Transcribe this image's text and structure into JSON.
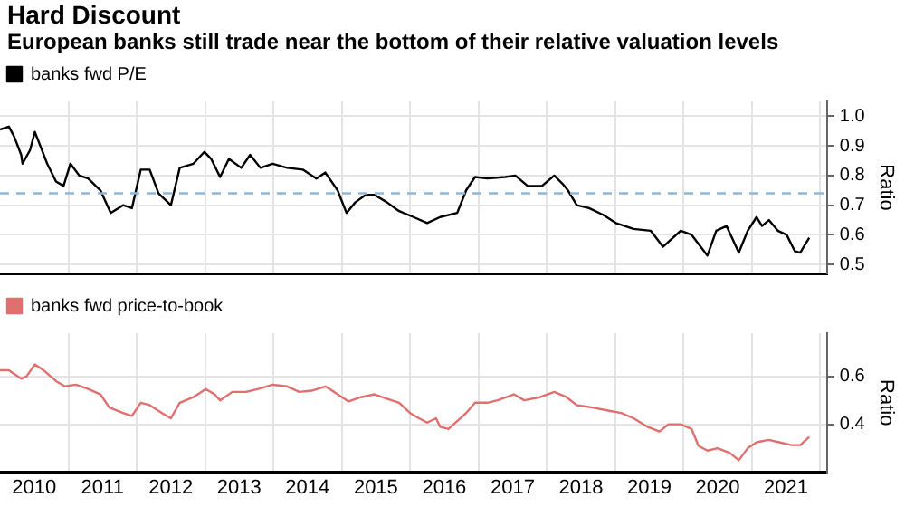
{
  "chart_data": [
    {
      "type": "line",
      "title": "Hard Discount",
      "subtitle": "European banks still trade near the bottom of their relative valuation levels",
      "ylabel": "Ratio",
      "x": [
        2010.0,
        2010.13,
        2010.21,
        2010.31,
        2010.33,
        2010.44,
        2010.51,
        2010.59,
        2010.69,
        2010.82,
        2010.93,
        2011.03,
        2011.16,
        2011.29,
        2011.47,
        2011.62,
        2011.8,
        2011.93,
        2012.06,
        2012.19,
        2012.32,
        2012.5,
        2012.63,
        2012.83,
        2012.99,
        2013.09,
        2013.22,
        2013.35,
        2013.53,
        2013.66,
        2013.81,
        2013.99,
        2014.2,
        2014.43,
        2014.63,
        2014.76,
        2014.94,
        2015.07,
        2015.2,
        2015.35,
        2015.48,
        2015.66,
        2015.84,
        2016.05,
        2016.25,
        2016.44,
        2016.69,
        2016.82,
        2016.95,
        2017.13,
        2017.39,
        2017.54,
        2017.72,
        2017.93,
        2018.11,
        2018.24,
        2018.31,
        2018.44,
        2018.62,
        2018.83,
        2019.01,
        2019.27,
        2019.52,
        2019.7,
        2019.96,
        2020.12,
        2020.35,
        2020.48,
        2020.63,
        2020.81,
        2020.94,
        2021.07,
        2021.15,
        2021.25,
        2021.38,
        2021.51,
        2021.63,
        2021.71,
        2021.76,
        2021.84
      ],
      "series": [
        {
          "name": "banks fwd P/E",
          "color": "#000000",
          "values": [
            0.955,
            0.965,
            0.93,
            0.87,
            0.84,
            0.886,
            0.947,
            0.9,
            0.84,
            0.78,
            0.765,
            0.84,
            0.8,
            0.79,
            0.75,
            0.674,
            0.7,
            0.69,
            0.82,
            0.82,
            0.74,
            0.7,
            0.826,
            0.84,
            0.88,
            0.856,
            0.795,
            0.856,
            0.826,
            0.87,
            0.826,
            0.84,
            0.826,
            0.82,
            0.79,
            0.81,
            0.75,
            0.674,
            0.71,
            0.735,
            0.735,
            0.71,
            0.68,
            0.66,
            0.64,
            0.66,
            0.674,
            0.75,
            0.795,
            0.79,
            0.795,
            0.8,
            0.765,
            0.765,
            0.8,
            0.77,
            0.75,
            0.7,
            0.69,
            0.667,
            0.64,
            0.62,
            0.614,
            0.56,
            0.614,
            0.6,
            0.53,
            0.614,
            0.63,
            0.54,
            0.614,
            0.66,
            0.63,
            0.65,
            0.614,
            0.6,
            0.545,
            0.54,
            0.56,
            0.59
          ]
        }
      ],
      "xlim": [
        2010,
        2022.1
      ],
      "xticks": [
        {
          "value": 2011,
          "label": null
        },
        {
          "value": 2012,
          "label": null
        },
        {
          "value": 2013,
          "label": null
        },
        {
          "value": 2014,
          "label": null
        },
        {
          "value": 2015,
          "label": null
        },
        {
          "value": 2016,
          "label": null
        },
        {
          "value": 2017,
          "label": null
        },
        {
          "value": 2018,
          "label": null
        },
        {
          "value": 2019,
          "label": null
        },
        {
          "value": 2020,
          "label": null
        },
        {
          "value": 2021,
          "label": null
        },
        {
          "value": 2022,
          "label": null
        }
      ],
      "ylim": [
        0.47,
        1.05
      ],
      "yticks": [
        0.5,
        0.6,
        0.7,
        0.8,
        0.9,
        {
          "value": 1,
          "label": "1.0"
        }
      ],
      "ref_lines": [
        {
          "axis": "y",
          "value": 0.74,
          "color": "#8fb8d8",
          "line_style": "dashed"
        }
      ],
      "grid": true,
      "legend": "top left",
      "tick_labels": "y"
    },
    {
      "type": "line",
      "ylabel": "Ratio",
      "x": [
        2010.0,
        2010.13,
        2010.31,
        2010.39,
        2010.51,
        2010.64,
        2010.82,
        2010.95,
        2011.11,
        2011.29,
        2011.47,
        2011.6,
        2011.8,
        2011.93,
        2012.06,
        2012.19,
        2012.37,
        2012.5,
        2012.63,
        2012.83,
        2013.01,
        2013.14,
        2013.22,
        2013.4,
        2013.6,
        2013.78,
        2013.99,
        2014.2,
        2014.38,
        2014.56,
        2014.76,
        2014.89,
        2015.1,
        2015.28,
        2015.48,
        2015.66,
        2015.84,
        2016.0,
        2016.13,
        2016.25,
        2016.38,
        2016.44,
        2016.56,
        2016.69,
        2016.82,
        2016.95,
        2017.13,
        2017.28,
        2017.52,
        2017.67,
        2017.9,
        2018.11,
        2018.29,
        2018.44,
        2018.67,
        2018.88,
        2019.09,
        2019.27,
        2019.47,
        2019.65,
        2019.78,
        2019.96,
        2020.12,
        2020.22,
        2020.35,
        2020.5,
        2020.68,
        2020.81,
        2020.94,
        2021.07,
        2021.25,
        2021.4,
        2021.58,
        2021.71,
        2021.84
      ],
      "series": [
        {
          "name": "banks fwd price-to-book",
          "color": "#e07070",
          "values": [
            0.625,
            0.625,
            0.59,
            0.6,
            0.65,
            0.625,
            0.58,
            0.558,
            0.565,
            0.547,
            0.525,
            0.47,
            0.447,
            0.435,
            0.49,
            0.48,
            0.447,
            0.425,
            0.49,
            0.513,
            0.547,
            0.525,
            0.5,
            0.535,
            0.535,
            0.547,
            0.565,
            0.558,
            0.535,
            0.54,
            0.558,
            0.535,
            0.495,
            0.513,
            0.525,
            0.507,
            0.49,
            0.447,
            0.425,
            0.407,
            0.425,
            0.39,
            0.38,
            0.413,
            0.447,
            0.49,
            0.49,
            0.5,
            0.525,
            0.5,
            0.513,
            0.535,
            0.513,
            0.48,
            0.47,
            0.458,
            0.447,
            0.425,
            0.39,
            0.37,
            0.4,
            0.4,
            0.38,
            0.31,
            0.29,
            0.3,
            0.28,
            0.25,
            0.3,
            0.325,
            0.335,
            0.325,
            0.313,
            0.313,
            0.347
          ]
        }
      ],
      "xlim": [
        2010,
        2022.1
      ],
      "xticks": [
        {
          "value": 2010.5,
          "label": "2010"
        },
        {
          "value": 2011,
          "label": null
        },
        {
          "value": 2011.5,
          "label": "2011"
        },
        {
          "value": 2012,
          "label": null
        },
        {
          "value": 2012.5,
          "label": "2012"
        },
        {
          "value": 2013,
          "label": null
        },
        {
          "value": 2013.5,
          "label": "2013"
        },
        {
          "value": 2014,
          "label": null
        },
        {
          "value": 2014.5,
          "label": "2014"
        },
        {
          "value": 2015,
          "label": null
        },
        {
          "value": 2015.5,
          "label": "2015"
        },
        {
          "value": 2016,
          "label": null
        },
        {
          "value": 2016.5,
          "label": "2016"
        },
        {
          "value": 2017,
          "label": null
        },
        {
          "value": 2017.5,
          "label": "2017"
        },
        {
          "value": 2018,
          "label": null
        },
        {
          "value": 2018.5,
          "label": "2018"
        },
        {
          "value": 2019,
          "label": null
        },
        {
          "value": 2019.5,
          "label": "2019"
        },
        {
          "value": 2020,
          "label": null
        },
        {
          "value": 2020.5,
          "label": "2020"
        },
        {
          "value": 2021,
          "label": null
        },
        {
          "value": 2021.5,
          "label": "2021"
        },
        {
          "value": 2022,
          "label": null
        }
      ],
      "ylim": [
        0.2,
        0.78
      ],
      "yticks": [
        0.4,
        0.6
      ],
      "grid": true,
      "legend": "top left"
    }
  ]
}
